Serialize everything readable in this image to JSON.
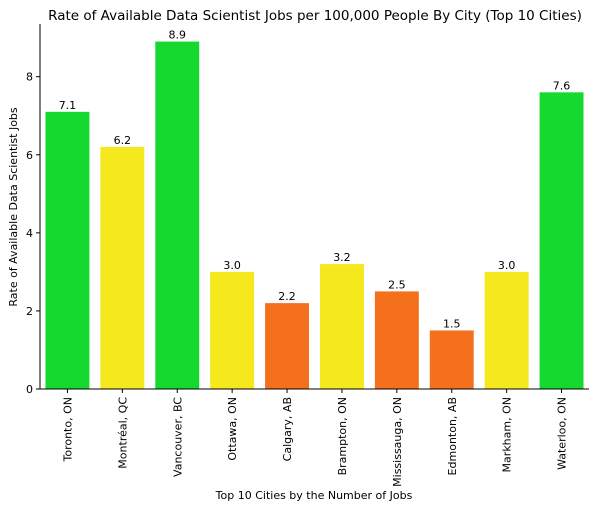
{
  "chart_data": {
    "type": "bar",
    "title": "Rate of Available Data Scientist Jobs per 100,000 People By City (Top 10 Cities)",
    "xlabel": "Top 10 Cities by the Number of Jobs",
    "ylabel": "Rate of Available Data Scientist Jobs",
    "ylim": [
      0,
      9.35
    ],
    "yticks": [
      0,
      2,
      4,
      6,
      8
    ],
    "grid": false,
    "categories": [
      "Toronto, ON",
      "Montréal, QC",
      "Vancouver, BC",
      "Ottawa, ON",
      "Calgary, AB",
      "Brampton, ON",
      "Mississauga, ON",
      "Edmonton, AB",
      "Markham, ON",
      "Waterloo, ON"
    ],
    "values": [
      7.1,
      6.2,
      8.9,
      3.0,
      2.2,
      3.2,
      2.5,
      1.5,
      3.0,
      7.6
    ],
    "data_labels": [
      "7.1",
      "6.2",
      "8.9",
      "3.0",
      "2.2",
      "3.2",
      "2.5",
      "1.5",
      "3.0",
      "7.6"
    ],
    "bar_colors": [
      "#16d930",
      "#f5e81c",
      "#16d930",
      "#f5e81c",
      "#f5701c",
      "#f5e81c",
      "#f5701c",
      "#f5701c",
      "#f5e81c",
      "#16d930"
    ]
  }
}
